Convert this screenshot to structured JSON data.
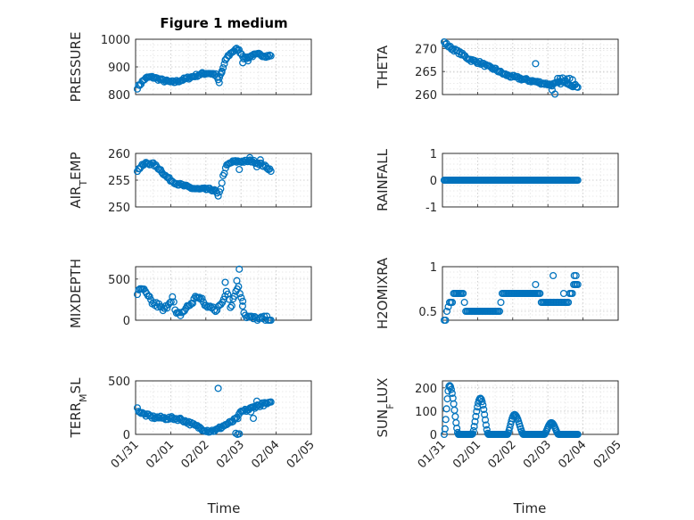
{
  "figure": {
    "title": "Figure 1 medium"
  },
  "colors": {
    "marker": "#0072BD",
    "axis": "#262626",
    "grid": "#c8c8c8"
  },
  "x_axis": {
    "label": "Time",
    "range_days": [
      0,
      5
    ],
    "ticks": [
      0,
      1,
      2,
      3,
      4,
      5
    ],
    "tick_labels": [
      "01/31",
      "02/01",
      "02/02",
      "02/03",
      "02/04",
      "02/05"
    ]
  },
  "chart_data": [
    {
      "type": "scatter",
      "ylabel": "PRESSURE",
      "ylim": [
        800,
        1000
      ],
      "yticks": [
        800,
        900,
        1000
      ],
      "ytick_labels": [
        "800",
        "900",
        "1000"
      ],
      "title": "Figure 1 medium",
      "grid": true,
      "keypoints": [
        [
          0.05,
          825
        ],
        [
          0.15,
          840
        ],
        [
          0.25,
          855
        ],
        [
          0.35,
          862
        ],
        [
          0.5,
          862
        ],
        [
          0.6,
          858
        ],
        [
          0.8,
          850
        ],
        [
          1.0,
          845
        ],
        [
          1.1,
          845
        ],
        [
          1.3,
          852
        ],
        [
          1.5,
          860
        ],
        [
          1.7,
          868
        ],
        [
          1.9,
          875
        ],
        [
          2.05,
          878
        ],
        [
          2.2,
          875
        ],
        [
          2.3,
          870
        ],
        [
          2.35,
          850
        ],
        [
          2.4,
          865
        ],
        [
          2.5,
          900
        ],
        [
          2.6,
          935
        ],
        [
          2.75,
          955
        ],
        [
          2.9,
          965
        ],
        [
          3.0,
          950
        ],
        [
          3.1,
          930
        ],
        [
          3.3,
          940
        ],
        [
          3.5,
          945
        ],
        [
          3.7,
          940
        ],
        [
          3.85,
          940
        ]
      ],
      "points": 110,
      "jitter": 5,
      "outliers": [
        [
          2.38,
          843
        ],
        [
          2.45,
          880
        ],
        [
          2.55,
          925
        ],
        [
          3.05,
          915
        ],
        [
          3.2,
          922
        ]
      ]
    },
    {
      "type": "scatter",
      "ylabel": "THETA",
      "ylim": [
        260,
        272
      ],
      "yticks": [
        260,
        265,
        270
      ],
      "ytick_labels": [
        "260",
        "265",
        "270"
      ],
      "grid": true,
      "keypoints": [
        [
          0.05,
          271.3
        ],
        [
          0.2,
          270.3
        ],
        [
          0.5,
          269
        ],
        [
          0.8,
          267.5
        ],
        [
          1.1,
          266.8
        ],
        [
          1.3,
          266
        ],
        [
          1.5,
          265.5
        ],
        [
          1.7,
          264.6
        ],
        [
          1.9,
          264
        ],
        [
          2.1,
          263.7
        ],
        [
          2.3,
          263.3
        ],
        [
          2.5,
          263
        ],
        [
          2.7,
          262.7
        ],
        [
          2.9,
          262.4
        ],
        [
          3.1,
          262.1
        ],
        [
          3.3,
          262.5
        ],
        [
          3.5,
          262.8
        ],
        [
          3.7,
          262
        ],
        [
          3.85,
          261.8
        ]
      ],
      "points": 110,
      "jitter": 0.3,
      "outliers": [
        [
          2.65,
          266.7
        ],
        [
          3.05,
          262.2
        ],
        [
          3.12,
          261
        ],
        [
          3.2,
          260.1
        ],
        [
          3.28,
          263.5
        ],
        [
          3.35,
          263.5
        ],
        [
          3.42,
          263.6
        ],
        [
          3.55,
          263.4
        ],
        [
          3.62,
          263.5
        ],
        [
          3.7,
          263.2
        ]
      ]
    },
    {
      "type": "scatter",
      "ylabel": "AIR_TEMP",
      "ylim": [
        250,
        260
      ],
      "yticks": [
        250,
        255,
        260
      ],
      "ytick_labels": [
        "250",
        "255",
        "260"
      ],
      "grid": true,
      "keypoints": [
        [
          0.05,
          256.8
        ],
        [
          0.15,
          257.5
        ],
        [
          0.3,
          258.2
        ],
        [
          0.5,
          258
        ],
        [
          0.7,
          257
        ],
        [
          0.85,
          255.8
        ],
        [
          1.0,
          255
        ],
        [
          1.2,
          254.3
        ],
        [
          1.4,
          253.9
        ],
        [
          1.6,
          253.5
        ],
        [
          1.8,
          253.3
        ],
        [
          2.0,
          253.3
        ],
        [
          2.2,
          253.2
        ],
        [
          2.3,
          252.8
        ],
        [
          2.35,
          251.8
        ],
        [
          2.42,
          253.5
        ],
        [
          2.5,
          256
        ],
        [
          2.6,
          257.8
        ],
        [
          2.75,
          258.4
        ],
        [
          2.9,
          258.5
        ],
        [
          3.1,
          258.5
        ],
        [
          3.3,
          258.6
        ],
        [
          3.5,
          258.2
        ],
        [
          3.7,
          257.5
        ],
        [
          3.85,
          256.9
        ]
      ],
      "points": 110,
      "jitter": 0.25,
      "outliers": [
        [
          2.95,
          257
        ],
        [
          3.25,
          259.2
        ],
        [
          3.45,
          257.5
        ],
        [
          3.55,
          258.8
        ]
      ]
    },
    {
      "type": "scatter",
      "ylabel": "RAINFALL",
      "ylim": [
        -1,
        1
      ],
      "yticks": [
        -1,
        0,
        1
      ],
      "ytick_labels": [
        "-1",
        "0",
        "1"
      ],
      "grid": true,
      "keypoints": [
        [
          0.05,
          0
        ],
        [
          3.85,
          0
        ]
      ],
      "points": 120,
      "jitter": 0,
      "outliers": []
    },
    {
      "type": "scatter",
      "ylabel": "MIXDEPTH",
      "ylim": [
        0,
        650
      ],
      "yticks": [
        0,
        500
      ],
      "ytick_labels": [
        "0",
        "500"
      ],
      "grid": true,
      "keypoints": [
        [
          0.05,
          330
        ],
        [
          0.2,
          380
        ],
        [
          0.35,
          280
        ],
        [
          0.5,
          200
        ],
        [
          0.65,
          180
        ],
        [
          0.8,
          110
        ],
        [
          0.95,
          220
        ],
        [
          1.05,
          280
        ],
        [
          1.15,
          60
        ],
        [
          1.3,
          80
        ],
        [
          1.45,
          150
        ],
        [
          1.6,
          210
        ],
        [
          1.75,
          300
        ],
        [
          1.9,
          230
        ],
        [
          2.05,
          150
        ],
        [
          2.2,
          180
        ],
        [
          2.3,
          100
        ],
        [
          2.4,
          180
        ],
        [
          2.5,
          250
        ],
        [
          2.6,
          400
        ],
        [
          2.7,
          160
        ],
        [
          2.8,
          280
        ],
        [
          2.9,
          420
        ],
        [
          3.0,
          300
        ],
        [
          3.1,
          70
        ],
        [
          3.2,
          40
        ],
        [
          3.35,
          20
        ],
        [
          3.5,
          10
        ],
        [
          3.65,
          15
        ],
        [
          3.85,
          10
        ]
      ],
      "points": 100,
      "jitter": 35,
      "outliers": [
        [
          2.95,
          620
        ],
        [
          2.88,
          480
        ],
        [
          2.55,
          460
        ],
        [
          3.05,
          230
        ]
      ]
    },
    {
      "type": "scatter",
      "ylabel": "H2OMIXRA",
      "ylim": [
        0.4,
        1.0
      ],
      "yticks": [
        0.5,
        1
      ],
      "ytick_labels": [
        "0.5",
        "1"
      ],
      "grid": true,
      "keypoints": [
        [
          0.05,
          0.4
        ],
        [
          0.1,
          0.5
        ],
        [
          0.15,
          0.55
        ],
        [
          0.2,
          0.6
        ],
        [
          0.3,
          0.7
        ],
        [
          0.55,
          0.7
        ],
        [
          0.6,
          0.6
        ],
        [
          0.65,
          0.5
        ],
        [
          1.6,
          0.5
        ],
        [
          1.65,
          0.6
        ],
        [
          1.7,
          0.7
        ],
        [
          2.6,
          0.7
        ],
        [
          2.7,
          0.7
        ],
        [
          2.8,
          0.6
        ],
        [
          3.5,
          0.6
        ],
        [
          3.6,
          0.7
        ],
        [
          3.7,
          0.8
        ],
        [
          3.85,
          0.8
        ]
      ],
      "points": 100,
      "jitter": 0,
      "step": true,
      "outliers": [
        [
          2.65,
          0.8
        ],
        [
          3.15,
          0.9
        ],
        [
          3.75,
          0.9
        ],
        [
          3.8,
          0.9
        ],
        [
          3.45,
          0.7
        ]
      ]
    },
    {
      "type": "scatter",
      "ylabel": "TERR_MSL",
      "ylim": [
        0,
        500
      ],
      "yticks": [
        0,
        500
      ],
      "ytick_labels": [
        "0",
        "500"
      ],
      "grid": true,
      "keypoints": [
        [
          0.05,
          240
        ],
        [
          0.15,
          200
        ],
        [
          0.3,
          180
        ],
        [
          0.5,
          160
        ],
        [
          0.7,
          155
        ],
        [
          0.9,
          150
        ],
        [
          1.1,
          150
        ],
        [
          1.3,
          140
        ],
        [
          1.5,
          110
        ],
        [
          1.7,
          80
        ],
        [
          1.9,
          50
        ],
        [
          2.1,
          30
        ],
        [
          2.3,
          40
        ],
        [
          2.5,
          80
        ],
        [
          2.7,
          110
        ],
        [
          2.9,
          150
        ],
        [
          3.0,
          210
        ],
        [
          3.2,
          230
        ],
        [
          3.4,
          260
        ],
        [
          3.6,
          280
        ],
        [
          3.85,
          290
        ]
      ],
      "points": 110,
      "jitter": 15,
      "outliers": [
        [
          2.35,
          430
        ],
        [
          2.85,
          10
        ],
        [
          2.9,
          0
        ],
        [
          2.95,
          5
        ],
        [
          3.35,
          150
        ],
        [
          3.28,
          210
        ],
        [
          3.45,
          310
        ]
      ]
    },
    {
      "type": "scatter",
      "ylabel": "SUN_FLUX",
      "ylim": [
        0,
        230
      ],
      "yticks": [
        0,
        100,
        200
      ],
      "ytick_labels": [
        "0",
        "100",
        "200"
      ],
      "grid": true,
      "bumps": [
        {
          "start": 0.05,
          "peak": 0.2,
          "end": 0.45,
          "height": 210
        },
        {
          "start": 0.85,
          "peak": 1.08,
          "end": 1.3,
          "height": 155
        },
        {
          "start": 1.85,
          "peak": 2.05,
          "end": 2.3,
          "height": 85
        },
        {
          "start": 2.9,
          "peak": 3.1,
          "end": 3.3,
          "height": 50
        }
      ],
      "xmax": 3.85,
      "points": 170,
      "jitter": 0,
      "outliers": []
    }
  ]
}
